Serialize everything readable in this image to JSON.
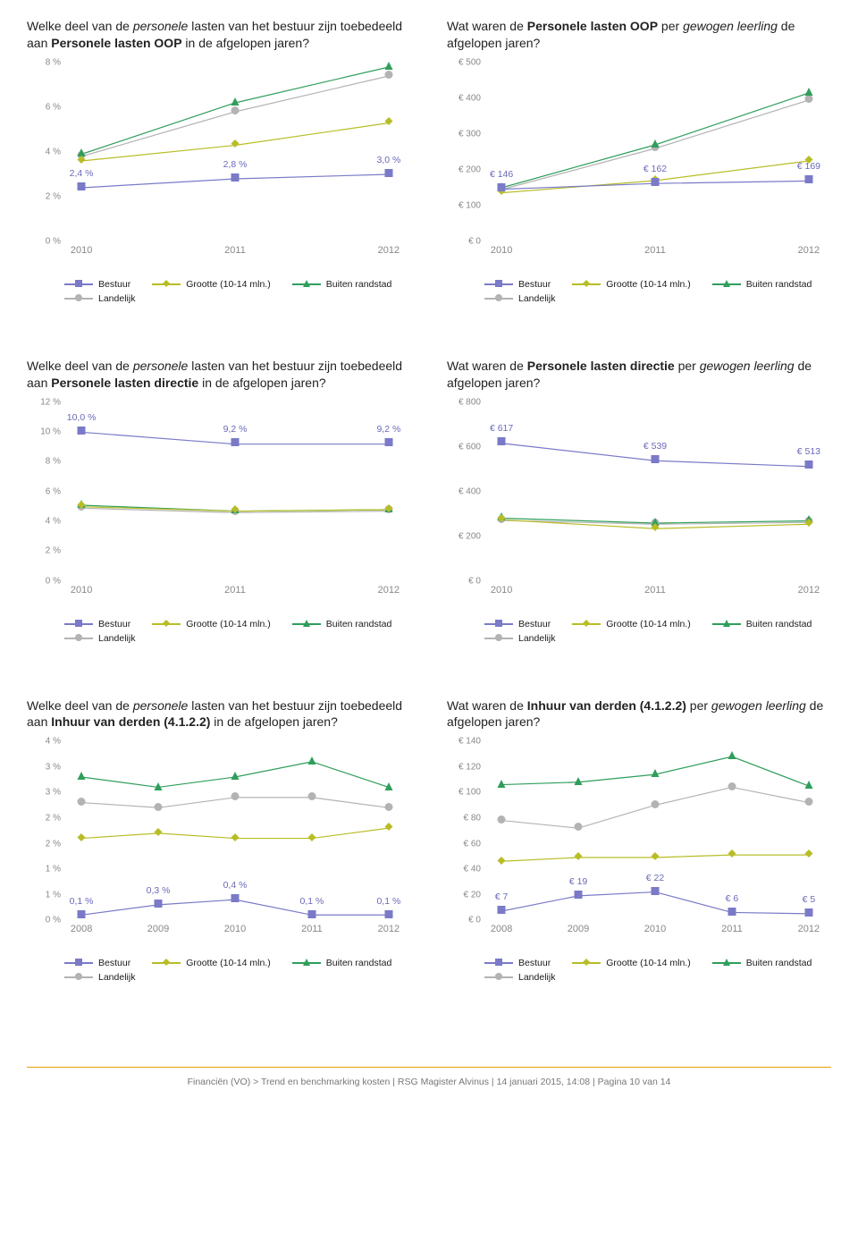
{
  "colors": {
    "bestuur": "#7a7ac8",
    "grootte": "#b8bd26",
    "buiten": "#2f9e5b",
    "landelijk": "#b3b3b3",
    "axis_text": "#888888",
    "background": "#ffffff",
    "footer_rule": "#e9a000"
  },
  "legend_labels": {
    "bestuur": "Bestuur",
    "grootte": "Grootte (10-14 mln.)",
    "buiten": "Buiten randstad",
    "landelijk": "Landelijk"
  },
  "footer": "Financiën (VO) > Trend en benchmarking kosten | RSG Magister Alvinus | 14 januari 2015, 14:08 | Pagina 10 van 14",
  "charts": [
    {
      "id": "c1",
      "title_parts": [
        {
          "t": "Welke deel van de "
        },
        {
          "t": "personele",
          "cls": "italic"
        },
        {
          "t": " lasten van het bestuur zijn toebedeeld aan "
        },
        {
          "t": "Personele lasten OOP",
          "cls": "bold"
        },
        {
          "t": " in de afgelopen jaren?"
        }
      ],
      "x": [
        "2010",
        "2011",
        "2012"
      ],
      "ylim": [
        0,
        8
      ],
      "ytick_step": 2,
      "y_fmt": "pct_int",
      "series": [
        {
          "key": "bestuur",
          "marker": "square",
          "vals": [
            2.4,
            2.8,
            3.0
          ]
        },
        {
          "key": "grootte",
          "marker": "diamond",
          "vals": [
            3.6,
            4.3,
            5.3
          ]
        },
        {
          "key": "buiten",
          "marker": "triangle",
          "vals": [
            3.9,
            6.2,
            7.8
          ]
        },
        {
          "key": "landelijk",
          "marker": "circle",
          "vals": [
            3.8,
            5.8,
            7.4
          ]
        }
      ],
      "annotations": [
        {
          "x": 0,
          "text": "2,4 %",
          "ref": "bestuur",
          "dy": -10
        },
        {
          "x": 1,
          "text": "2,8 %",
          "ref": "bestuur",
          "dy": -10
        },
        {
          "x": 2,
          "text": "3,0 %",
          "ref": "bestuur",
          "dy": -10
        }
      ]
    },
    {
      "id": "c2",
      "title_parts": [
        {
          "t": "Wat waren de "
        },
        {
          "t": "Personele lasten OOP",
          "cls": "bold"
        },
        {
          "t": " per "
        },
        {
          "t": "gewogen leerling",
          "cls": "italic"
        },
        {
          "t": " de afgelopen jaren?"
        }
      ],
      "x": [
        "2010",
        "2011",
        "2012"
      ],
      "ylim": [
        0,
        500
      ],
      "ytick_step": 100,
      "y_fmt": "euro_int",
      "series": [
        {
          "key": "bestuur",
          "marker": "square",
          "vals": [
            146,
            162,
            169
          ]
        },
        {
          "key": "grootte",
          "marker": "diamond",
          "vals": [
            136,
            170,
            225
          ]
        },
        {
          "key": "buiten",
          "marker": "triangle",
          "vals": [
            150,
            270,
            415
          ]
        },
        {
          "key": "landelijk",
          "marker": "circle",
          "vals": [
            145,
            260,
            395
          ]
        }
      ],
      "annotations": [
        {
          "x": 0,
          "text": "€ 146",
          "ref": "bestuur",
          "dy": -10
        },
        {
          "x": 1,
          "text": "€ 162",
          "ref": "bestuur",
          "dy": -10
        },
        {
          "x": 2,
          "text": "€ 169",
          "ref": "bestuur",
          "dy": -10
        }
      ]
    },
    {
      "id": "c3",
      "title_parts": [
        {
          "t": "Welke deel van de "
        },
        {
          "t": "personele",
          "cls": "italic"
        },
        {
          "t": " lasten van het bestuur zijn toebedeeld aan "
        },
        {
          "t": "Personele lasten directie",
          "cls": "bold"
        },
        {
          "t": " in de afgelopen jaren?"
        }
      ],
      "x": [
        "2010",
        "2011",
        "2012"
      ],
      "ylim": [
        0,
        12
      ],
      "ytick_step": 2,
      "y_fmt": "pct_int",
      "series": [
        {
          "key": "bestuur",
          "marker": "square",
          "vals": [
            10.0,
            9.2,
            9.2
          ]
        },
        {
          "key": "grootte",
          "marker": "diamond",
          "vals": [
            5.0,
            4.7,
            4.8
          ]
        },
        {
          "key": "buiten",
          "marker": "triangle",
          "vals": [
            5.1,
            4.7,
            4.8
          ]
        },
        {
          "key": "landelijk",
          "marker": "circle",
          "vals": [
            4.9,
            4.6,
            4.7
          ]
        }
      ],
      "annotations": [
        {
          "x": 0,
          "text": "10,0 %",
          "ref": "bestuur",
          "dy": -10
        },
        {
          "x": 1,
          "text": "9,2 %",
          "ref": "bestuur",
          "dy": -10
        },
        {
          "x": 2,
          "text": "9,2 %",
          "ref": "bestuur",
          "dy": -10
        }
      ]
    },
    {
      "id": "c4",
      "title_parts": [
        {
          "t": "Wat waren de "
        },
        {
          "t": "Personele lasten directie",
          "cls": "bold"
        },
        {
          "t": " per "
        },
        {
          "t": "gewogen leerling",
          "cls": "italic"
        },
        {
          "t": " de afgelopen jaren?"
        }
      ],
      "x": [
        "2010",
        "2011",
        "2012"
      ],
      "ylim": [
        0,
        800
      ],
      "ytick_step": 200,
      "y_fmt": "euro_int",
      "series": [
        {
          "key": "bestuur",
          "marker": "square",
          "vals": [
            617,
            539,
            513
          ]
        },
        {
          "key": "grootte",
          "marker": "diamond",
          "vals": [
            275,
            235,
            255
          ]
        },
        {
          "key": "buiten",
          "marker": "triangle",
          "vals": [
            282,
            260,
            270
          ]
        },
        {
          "key": "landelijk",
          "marker": "circle",
          "vals": [
            272,
            255,
            263
          ]
        }
      ],
      "annotations": [
        {
          "x": 0,
          "text": "€ 617",
          "ref": "bestuur",
          "dy": -10
        },
        {
          "x": 1,
          "text": "€ 539",
          "ref": "bestuur",
          "dy": -10
        },
        {
          "x": 2,
          "text": "€ 513",
          "ref": "bestuur",
          "dy": -10
        }
      ]
    },
    {
      "id": "c5",
      "title_parts": [
        {
          "t": "Welke deel van de "
        },
        {
          "t": "personele",
          "cls": "italic"
        },
        {
          "t": " lasten van het bestuur zijn toebedeeld aan "
        },
        {
          "t": "Inhuur van derden (4.1.2.2)",
          "cls": "bold"
        },
        {
          "t": " in de afgelopen jaren?"
        }
      ],
      "x": [
        "2008",
        "2009",
        "2010",
        "2011",
        "2012"
      ],
      "ylim": [
        0,
        3.5
      ],
      "ytick_step": 0.5,
      "y_fmt": "pct_half",
      "series": [
        {
          "key": "bestuur",
          "marker": "square",
          "vals": [
            0.1,
            0.3,
            0.4,
            0.1,
            0.1
          ]
        },
        {
          "key": "grootte",
          "marker": "diamond",
          "vals": [
            1.6,
            1.7,
            1.6,
            1.6,
            1.8
          ]
        },
        {
          "key": "buiten",
          "marker": "triangle",
          "vals": [
            2.8,
            2.6,
            2.8,
            3.1,
            2.6
          ]
        },
        {
          "key": "landelijk",
          "marker": "circle",
          "vals": [
            2.3,
            2.2,
            2.4,
            2.4,
            2.2
          ]
        }
      ],
      "annotations": [
        {
          "x": 0,
          "text": "0,1 %",
          "ref": "bestuur",
          "dy": -10
        },
        {
          "x": 1,
          "text": "0,3 %",
          "ref": "bestuur",
          "dy": -10
        },
        {
          "x": 2,
          "text": "0,4 %",
          "ref": "bestuur",
          "dy": -10
        },
        {
          "x": 3,
          "text": "0,1 %",
          "ref": "bestuur",
          "dy": -10
        },
        {
          "x": 4,
          "text": "0,1 %",
          "ref": "bestuur",
          "dy": -10
        }
      ]
    },
    {
      "id": "c6",
      "title_parts": [
        {
          "t": "Wat waren de "
        },
        {
          "t": "Inhuur van derden (4.1.2.2)",
          "cls": "bold"
        },
        {
          "t": " per "
        },
        {
          "t": "gewogen leerling",
          "cls": "italic"
        },
        {
          "t": " de afgelopen jaren?"
        }
      ],
      "x": [
        "2008",
        "2009",
        "2010",
        "2011",
        "2012"
      ],
      "ylim": [
        0,
        140
      ],
      "ytick_step": 20,
      "y_fmt": "euro_int",
      "series": [
        {
          "key": "bestuur",
          "marker": "square",
          "vals": [
            7,
            19,
            22,
            6,
            5
          ]
        },
        {
          "key": "grootte",
          "marker": "diamond",
          "vals": [
            46,
            49,
            49,
            51,
            51
          ]
        },
        {
          "key": "buiten",
          "marker": "triangle",
          "vals": [
            106,
            108,
            114,
            128,
            105
          ]
        },
        {
          "key": "landelijk",
          "marker": "circle",
          "vals": [
            78,
            72,
            90,
            104,
            92
          ]
        }
      ],
      "annotations": [
        {
          "x": 0,
          "text": "€ 7",
          "ref": "bestuur",
          "dy": -10
        },
        {
          "x": 1,
          "text": "€ 19",
          "ref": "bestuur",
          "dy": -10
        },
        {
          "x": 2,
          "text": "€ 22",
          "ref": "bestuur",
          "dy": -10
        },
        {
          "x": 3,
          "text": "€ 6",
          "ref": "bestuur",
          "dy": -10
        },
        {
          "x": 4,
          "text": "€ 5",
          "ref": "bestuur",
          "dy": -10
        }
      ]
    }
  ]
}
